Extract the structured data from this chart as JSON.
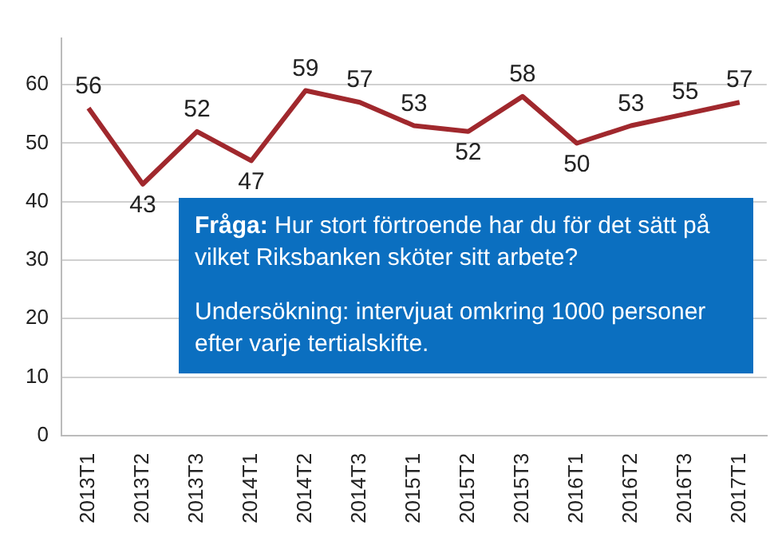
{
  "chart_data": {
    "type": "line",
    "categories": [
      "2013T1",
      "2013T2",
      "2013T3",
      "2014T1",
      "2014T2",
      "2014T3",
      "2015T1",
      "2015T2",
      "2015T3",
      "2016T1",
      "2016T2",
      "2016T3",
      "2017T1"
    ],
    "series": [
      {
        "color": "#a0282d",
        "values": [
          56,
          43,
          52,
          47,
          59,
          57,
          53,
          52,
          58,
          50,
          53,
          55,
          57
        ]
      }
    ],
    "ylim": [
      0,
      68
    ],
    "yticks": [
      0,
      10,
      20,
      30,
      40,
      50,
      60
    ],
    "grid": "y",
    "legend": false,
    "marker": "none",
    "line_style": "solid",
    "data_labels": true,
    "annotations": [
      "Fråga: Hur stort förtroende har du för det sätt på vilket Riksbanken sköter sitt arbete?",
      "Undersökning: intervjuat omkring 1000 personer efter varje tertialskifte."
    ]
  }
}
